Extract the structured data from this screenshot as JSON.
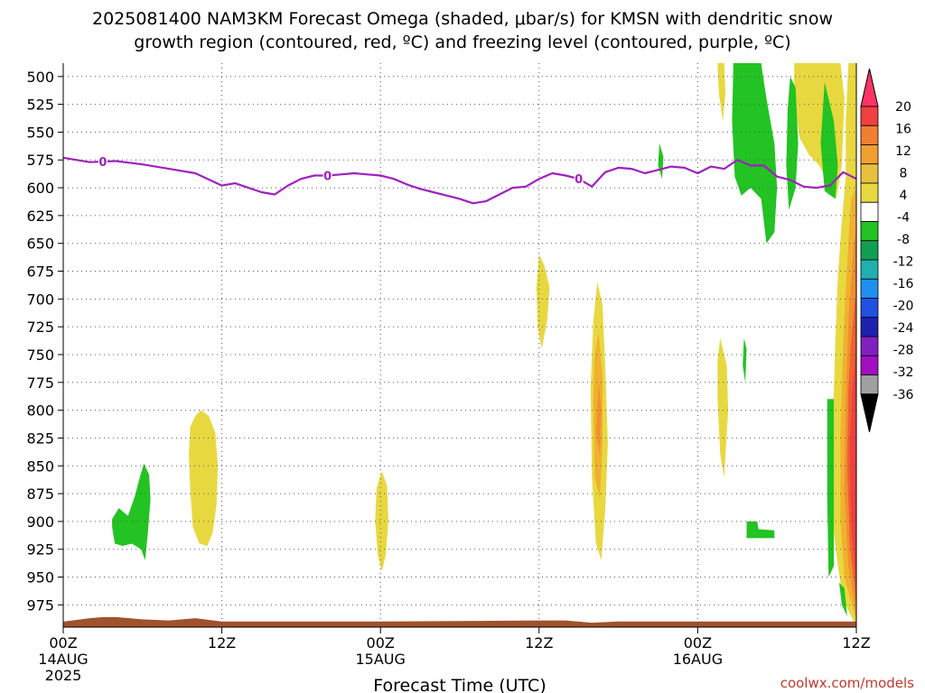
{
  "chart_data": {
    "type": "heatmap",
    "title_line1": "2025081400 NAM3KM Forecast Omega (shaded, μbar/s) for KMSN with dendritic snow",
    "title_line2": "growth region (contoured, red, ºC) and freezing level (contoured, purple, ºC)",
    "xlabel": "Forecast Time (UTC)",
    "credit": "coolwx.com/models",
    "pressure_levels": [
      "500",
      "525",
      "550",
      "575",
      "600",
      "625",
      "650",
      "675",
      "700",
      "725",
      "750",
      "775",
      "800",
      "825",
      "850",
      "875",
      "900",
      "925",
      "950",
      "975"
    ],
    "time_ticks": [
      {
        "hour": 0,
        "label": "00Z",
        "sub1": "14AUG",
        "sub2": "2025"
      },
      {
        "hour": 12,
        "label": "12Z",
        "sub1": "",
        "sub2": ""
      },
      {
        "hour": 24,
        "label": "00Z",
        "sub1": "15AUG",
        "sub2": ""
      },
      {
        "hour": 36,
        "label": "12Z",
        "sub1": "",
        "sub2": ""
      },
      {
        "hour": 48,
        "label": "00Z",
        "sub1": "16AUG",
        "sub2": ""
      },
      {
        "hour": 60,
        "label": "12Z",
        "sub1": "",
        "sub2": ""
      }
    ],
    "xlim": [
      0,
      60
    ],
    "ylim": [
      488,
      995
    ],
    "colorbar_labels": [
      "20",
      "16",
      "12",
      "8",
      "4",
      "-4",
      "-8",
      "-12",
      "-16",
      "-20",
      "-24",
      "-28",
      "-32",
      "-36"
    ],
    "colorbar_colors": [
      "#ff3366",
      "#f04040",
      "#f08030",
      "#f0a030",
      "#e8c040",
      "#e8d840",
      "#ffffff",
      "#22c322",
      "#10a050",
      "#20b0b0",
      "#1f8ff0",
      "#2050e0",
      "#2020b0",
      "#8020c0",
      "#a010c0",
      "#a0a0a0",
      "#000000"
    ],
    "freezing_level": {
      "color": "#a020c0",
      "label": "0",
      "label_hours": [
        3,
        20,
        39
      ],
      "hours": [
        0,
        2,
        4,
        6,
        8,
        10,
        12,
        13,
        14,
        15,
        16,
        17,
        18,
        19,
        20,
        21,
        22,
        23,
        24,
        25,
        26,
        27,
        28,
        29,
        30,
        31,
        32,
        33,
        34,
        35,
        36,
        37,
        38,
        39,
        40,
        41,
        42,
        43,
        44,
        45,
        46,
        47,
        48,
        49,
        50,
        51,
        52,
        53,
        54,
        55,
        56,
        57,
        58,
        59,
        60
      ],
      "values": [
        573,
        577,
        576,
        579,
        583,
        587,
        598,
        596,
        600,
        604,
        606,
        598,
        592,
        589,
        589,
        588,
        587,
        588,
        589,
        592,
        597,
        601,
        604,
        607,
        610,
        614,
        612,
        606,
        600,
        599,
        592,
        587,
        589,
        592,
        599,
        586,
        582,
        583,
        587,
        584,
        581,
        582,
        587,
        581,
        583,
        575,
        580,
        580,
        590,
        593,
        599,
        600,
        598,
        586,
        592
      ]
    },
    "omega_regions": [
      {
        "level": "-8",
        "points": [
          [
            3.7,
            898
          ],
          [
            4.2,
            888
          ],
          [
            4.9,
            895
          ],
          [
            5.4,
            878
          ],
          [
            5.8,
            860
          ],
          [
            6.1,
            848
          ],
          [
            6.5,
            858
          ],
          [
            6.6,
            880
          ],
          [
            6.4,
            910
          ],
          [
            6.2,
            935
          ],
          [
            5.9,
            925
          ],
          [
            5.2,
            920
          ],
          [
            4.5,
            922
          ],
          [
            3.9,
            920
          ],
          [
            3.7,
            905
          ]
        ]
      },
      {
        "level": "4",
        "points": [
          [
            9.6,
            815
          ],
          [
            10.0,
            805
          ],
          [
            10.4,
            800
          ],
          [
            11.0,
            805
          ],
          [
            11.5,
            820
          ],
          [
            11.7,
            850
          ],
          [
            11.6,
            885
          ],
          [
            11.3,
            910
          ],
          [
            10.9,
            922
          ],
          [
            10.3,
            920
          ],
          [
            9.8,
            905
          ],
          [
            9.6,
            870
          ],
          [
            9.5,
            840
          ]
        ]
      },
      {
        "level": "4",
        "points": [
          [
            23.7,
            870
          ],
          [
            24.1,
            855
          ],
          [
            24.5,
            868
          ],
          [
            24.6,
            900
          ],
          [
            24.4,
            930
          ],
          [
            24.1,
            945
          ],
          [
            23.8,
            930
          ],
          [
            23.6,
            900
          ]
        ]
      },
      {
        "level": "4",
        "points": [
          [
            36.0,
            660
          ],
          [
            36.4,
            670
          ],
          [
            36.8,
            690
          ],
          [
            36.6,
            720
          ],
          [
            36.2,
            745
          ],
          [
            35.9,
            725
          ],
          [
            35.8,
            690
          ]
        ]
      },
      {
        "level": "4",
        "points": [
          [
            40.4,
            685
          ],
          [
            40.8,
            705
          ],
          [
            41.0,
            760
          ],
          [
            41.2,
            830
          ],
          [
            41.0,
            890
          ],
          [
            40.7,
            935
          ],
          [
            40.3,
            920
          ],
          [
            40.0,
            860
          ],
          [
            39.9,
            780
          ],
          [
            40.1,
            720
          ]
        ]
      },
      {
        "level": "8",
        "points": [
          [
            40.5,
            730
          ],
          [
            40.8,
            770
          ],
          [
            40.8,
            830
          ],
          [
            40.6,
            880
          ],
          [
            40.2,
            860
          ],
          [
            40.1,
            790
          ],
          [
            40.2,
            750
          ]
        ]
      },
      {
        "level": "12",
        "points": [
          [
            40.5,
            775
          ],
          [
            40.7,
            800
          ],
          [
            40.6,
            840
          ],
          [
            40.3,
            820
          ]
        ]
      },
      {
        "level": "-8",
        "points": [
          [
            45.1,
            560
          ],
          [
            45.4,
            572
          ],
          [
            45.3,
            592
          ],
          [
            45.0,
            580
          ]
        ]
      },
      {
        "level": "4",
        "points": [
          [
            49.7,
            735
          ],
          [
            50.2,
            760
          ],
          [
            50.3,
            800
          ],
          [
            50.0,
            860
          ],
          [
            49.7,
            840
          ],
          [
            49.5,
            790
          ],
          [
            49.5,
            755
          ]
        ]
      },
      {
        "level": "-8",
        "points": [
          [
            51.5,
            735
          ],
          [
            51.7,
            745
          ],
          [
            51.6,
            775
          ],
          [
            51.4,
            760
          ]
        ]
      },
      {
        "level": "-8",
        "points": [
          [
            51.7,
            900
          ],
          [
            52.5,
            900
          ],
          [
            52.6,
            907
          ],
          [
            53.8,
            908
          ],
          [
            53.8,
            915
          ],
          [
            51.7,
            915
          ]
        ]
      },
      {
        "level": "4",
        "points": [
          [
            49.5,
            488
          ],
          [
            50.0,
            488
          ],
          [
            50.1,
            515
          ],
          [
            49.9,
            540
          ],
          [
            49.6,
            515
          ]
        ]
      },
      {
        "level": "-8",
        "points": [
          [
            50.7,
            488
          ],
          [
            51.2,
            488
          ],
          [
            52.8,
            488
          ],
          [
            53.2,
            520
          ],
          [
            53.8,
            560
          ],
          [
            54.0,
            600
          ],
          [
            53.8,
            640
          ],
          [
            53.2,
            650
          ],
          [
            52.8,
            610
          ],
          [
            52.0,
            600
          ],
          [
            51.3,
            607
          ],
          [
            50.8,
            590
          ],
          [
            50.6,
            540
          ]
        ]
      },
      {
        "level": "4",
        "points": [
          [
            55.3,
            488
          ],
          [
            57.0,
            488
          ],
          [
            58.8,
            488
          ],
          [
            59.1,
            520
          ],
          [
            58.9,
            580
          ],
          [
            58.5,
            610
          ],
          [
            58.0,
            600
          ],
          [
            57.2,
            580
          ],
          [
            56.4,
            570
          ],
          [
            55.7,
            555
          ],
          [
            55.3,
            520
          ]
        ]
      },
      {
        "level": "-8",
        "points": [
          [
            55.0,
            500
          ],
          [
            55.4,
            510
          ],
          [
            55.6,
            560
          ],
          [
            55.4,
            600
          ],
          [
            54.9,
            620
          ],
          [
            54.7,
            580
          ],
          [
            54.8,
            530
          ]
        ]
      },
      {
        "level": "-8",
        "points": [
          [
            57.6,
            505
          ],
          [
            58.3,
            540
          ],
          [
            58.6,
            580
          ],
          [
            58.4,
            610
          ],
          [
            57.6,
            603
          ],
          [
            57.3,
            560
          ]
        ]
      },
      {
        "level": "4",
        "points": [
          [
            59.4,
            488
          ],
          [
            60.0,
            488
          ],
          [
            60.0,
            995
          ],
          [
            59.0,
            970
          ],
          [
            58.6,
            940
          ],
          [
            58.2,
            900
          ],
          [
            58.2,
            820
          ],
          [
            58.4,
            740
          ],
          [
            58.6,
            680
          ],
          [
            58.9,
            630
          ],
          [
            59.2,
            590
          ],
          [
            59.2,
            540
          ]
        ]
      },
      {
        "level": "8",
        "points": [
          [
            59.6,
            610
          ],
          [
            60.0,
            600
          ],
          [
            60.0,
            990
          ],
          [
            59.1,
            950
          ],
          [
            58.8,
            900
          ],
          [
            58.8,
            820
          ],
          [
            59.0,
            740
          ],
          [
            59.2,
            690
          ],
          [
            59.4,
            650
          ]
        ]
      },
      {
        "level": "12",
        "points": [
          [
            59.8,
            650
          ],
          [
            60.0,
            640
          ],
          [
            60.0,
            985
          ],
          [
            59.4,
            940
          ],
          [
            59.1,
            870
          ],
          [
            59.2,
            790
          ],
          [
            59.4,
            720
          ]
        ]
      },
      {
        "level": "16",
        "points": [
          [
            59.9,
            700
          ],
          [
            60.0,
            700
          ],
          [
            60.0,
            975
          ],
          [
            59.5,
            920
          ],
          [
            59.3,
            850
          ],
          [
            59.4,
            780
          ],
          [
            59.6,
            740
          ]
        ]
      },
      {
        "level": "20",
        "points": [
          [
            60.0,
            740
          ],
          [
            60.0,
            960
          ],
          [
            59.6,
            900
          ],
          [
            59.5,
            830
          ],
          [
            59.7,
            780
          ]
        ]
      },
      {
        "level": "-8",
        "points": [
          [
            57.8,
            790
          ],
          [
            58.3,
            790
          ],
          [
            58.3,
            940
          ],
          [
            57.9,
            950
          ],
          [
            57.8,
            880
          ]
        ]
      },
      {
        "level": "-8",
        "points": [
          [
            58.7,
            955
          ],
          [
            59.1,
            960
          ],
          [
            59.3,
            985
          ],
          [
            58.9,
            975
          ]
        ]
      }
    ],
    "terrain": {
      "color": "#a0522d",
      "top_hours": [
        0,
        2,
        3,
        4,
        6,
        8,
        10,
        12,
        24,
        36,
        38,
        40,
        42,
        48,
        60
      ],
      "top_values": [
        990,
        987,
        986,
        986,
        988,
        989,
        987,
        990,
        990,
        989,
        989,
        991,
        990,
        990,
        990
      ]
    }
  }
}
